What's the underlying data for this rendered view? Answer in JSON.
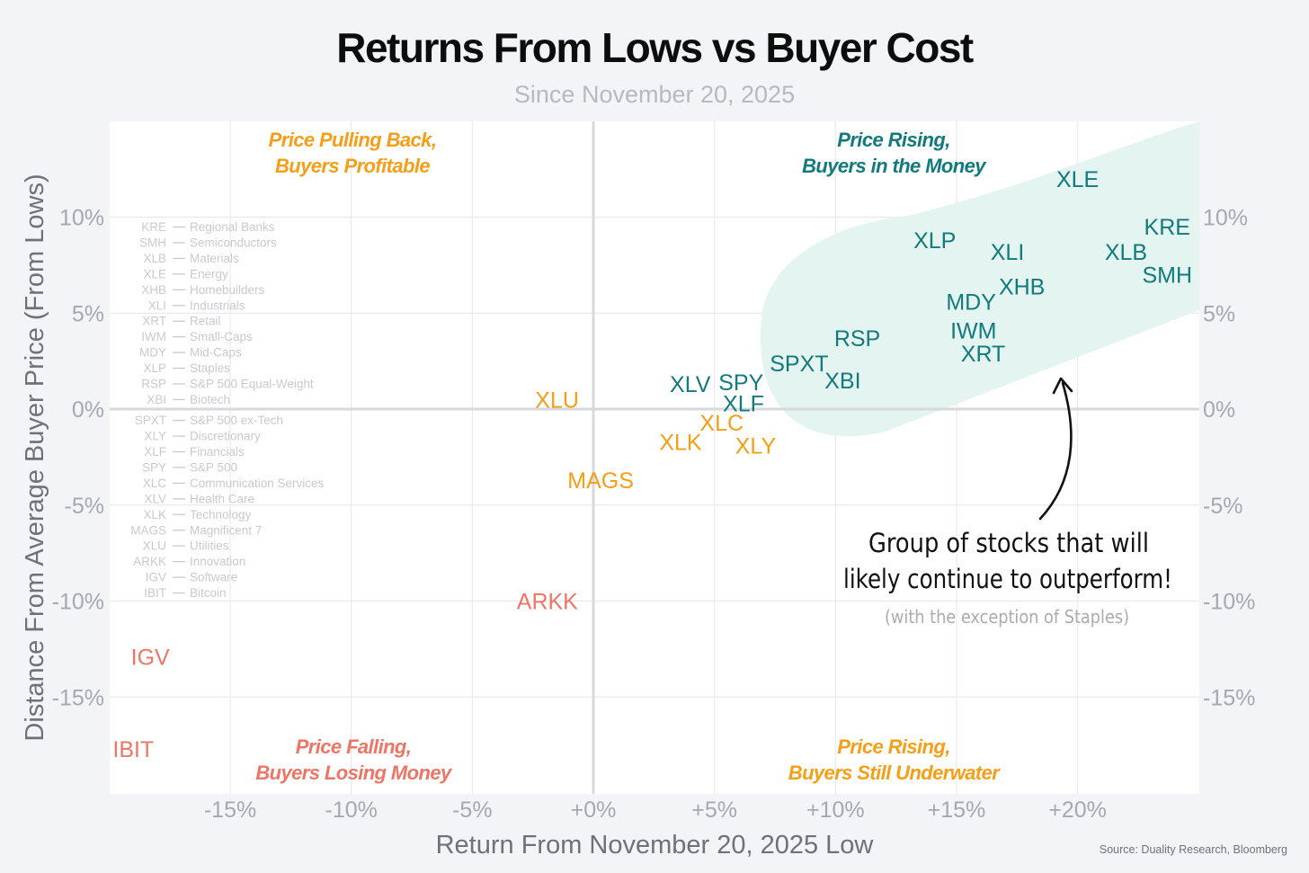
{
  "title": "Returns From Lows vs Buyer Cost",
  "subtitle": "Since November 20, 2025",
  "source": "Source: Duality Research, Bloomberg",
  "colors": {
    "teal": "#127a7c",
    "orange": "#f59e16",
    "red": "#ee7566",
    "zone": "#e4f5f1"
  },
  "chart_data": {
    "type": "scatter",
    "xlabel": "Return From November 20, 2025 Low",
    "ylabel": "Distance From Average Buyer Price (From Lows)",
    "xlim": [
      -20,
      25
    ],
    "ylim": [
      -20,
      15
    ],
    "x_ticks": [
      -15,
      -10,
      -5,
      0,
      5,
      10,
      15,
      20
    ],
    "x_tick_labels": [
      "-15%",
      "-10%",
      "-5%",
      "+0%",
      "+5%",
      "+10%",
      "+15%",
      "+20%"
    ],
    "y_ticks": [
      10,
      5,
      0,
      -5,
      -10,
      -15
    ],
    "y_tick_labels": [
      "10%",
      "5%",
      "0%",
      "-5%",
      "-10%",
      "-15%"
    ],
    "grid": true,
    "quadrant_labels": {
      "top_left": [
        "Price Pulling Back,",
        "Buyers Profitable"
      ],
      "top_right": [
        "Price Rising,",
        "Buyers in the Money"
      ],
      "bottom_left": [
        "Price Falling,",
        "Buyers Losing Money"
      ],
      "bottom_right": [
        "Price Rising,",
        "Buyers Still Underwater"
      ]
    },
    "points": [
      {
        "label": "XLE",
        "x": 20.0,
        "y": 12.0,
        "group": "teal"
      },
      {
        "label": "KRE",
        "x": 23.7,
        "y": 9.5,
        "group": "teal"
      },
      {
        "label": "XLB",
        "x": 22.0,
        "y": 8.2,
        "group": "teal"
      },
      {
        "label": "SMH",
        "x": 23.7,
        "y": 7.0,
        "group": "teal"
      },
      {
        "label": "XLP",
        "x": 14.1,
        "y": 8.8,
        "group": "teal"
      },
      {
        "label": "XLI",
        "x": 17.1,
        "y": 8.2,
        "group": "teal"
      },
      {
        "label": "XHB",
        "x": 17.7,
        "y": 6.4,
        "group": "teal"
      },
      {
        "label": "MDY",
        "x": 15.6,
        "y": 5.6,
        "group": "teal"
      },
      {
        "label": "IWM",
        "x": 15.7,
        "y": 4.1,
        "group": "teal"
      },
      {
        "label": "XRT",
        "x": 16.1,
        "y": 2.9,
        "group": "teal"
      },
      {
        "label": "RSP",
        "x": 10.9,
        "y": 3.7,
        "group": "teal"
      },
      {
        "label": "SPXT",
        "x": 8.5,
        "y": 2.4,
        "group": "teal"
      },
      {
        "label": "XBI",
        "x": 10.3,
        "y": 1.5,
        "group": "teal"
      },
      {
        "label": "XLV",
        "x": 4.0,
        "y": 1.3,
        "group": "teal"
      },
      {
        "label": "SPY",
        "x": 6.1,
        "y": 1.4,
        "group": "teal"
      },
      {
        "label": "XLF",
        "x": 6.2,
        "y": 0.3,
        "group": "teal"
      },
      {
        "label": "XLU",
        "x": -1.5,
        "y": 0.5,
        "group": "orange"
      },
      {
        "label": "XLC",
        "x": 5.3,
        "y": -0.7,
        "group": "orange"
      },
      {
        "label": "XLK",
        "x": 3.6,
        "y": -1.7,
        "group": "orange"
      },
      {
        "label": "XLY",
        "x": 6.7,
        "y": -1.9,
        "group": "orange"
      },
      {
        "label": "MAGS",
        "x": 0.3,
        "y": -3.7,
        "group": "orange"
      },
      {
        "label": "ARKK",
        "x": -1.9,
        "y": -10.0,
        "group": "red"
      },
      {
        "label": "IGV",
        "x": -18.3,
        "y": -12.9,
        "group": "red"
      },
      {
        "label": "IBIT",
        "x": -19.0,
        "y": -17.7,
        "group": "red"
      }
    ],
    "legend": [
      {
        "ticker": "KRE",
        "name": "Regional Banks"
      },
      {
        "ticker": "SMH",
        "name": "Semiconductors"
      },
      {
        "ticker": "XLB",
        "name": "Materials"
      },
      {
        "ticker": "XLE",
        "name": "Energy"
      },
      {
        "ticker": "XHB",
        "name": "Homebuilders"
      },
      {
        "ticker": "XLI",
        "name": "Industrials"
      },
      {
        "ticker": "XRT",
        "name": "Retail"
      },
      {
        "ticker": "IWM",
        "name": "Small-Caps"
      },
      {
        "ticker": "MDY",
        "name": "Mid-Caps"
      },
      {
        "ticker": "XLP",
        "name": "Staples"
      },
      {
        "ticker": "RSP",
        "name": "S&P 500 Equal-Weight"
      },
      {
        "ticker": "XBI",
        "name": "Biotech"
      },
      {
        "ticker": "SPXT",
        "name": "S&P 500 ex-Tech"
      },
      {
        "ticker": "XLY",
        "name": "Discretionary"
      },
      {
        "ticker": "XLF",
        "name": "Financials"
      },
      {
        "ticker": "SPY",
        "name": "S&P 500"
      },
      {
        "ticker": "XLC",
        "name": "Communication Services"
      },
      {
        "ticker": "XLV",
        "name": "Health Care"
      },
      {
        "ticker": "XLK",
        "name": "Technology"
      },
      {
        "ticker": "MAGS",
        "name": "Magnificent 7"
      },
      {
        "ticker": "XLU",
        "name": "Utilities"
      },
      {
        "ticker": "ARKK",
        "name": "Innovation"
      },
      {
        "ticker": "IGV",
        "name": "Software"
      },
      {
        "ticker": "IBIT",
        "name": "Bitcoin"
      }
    ],
    "annotation": {
      "line1": "Group of stocks that will",
      "line2": "likely continue to outperform!",
      "note": "(with the exception of Staples)"
    }
  }
}
